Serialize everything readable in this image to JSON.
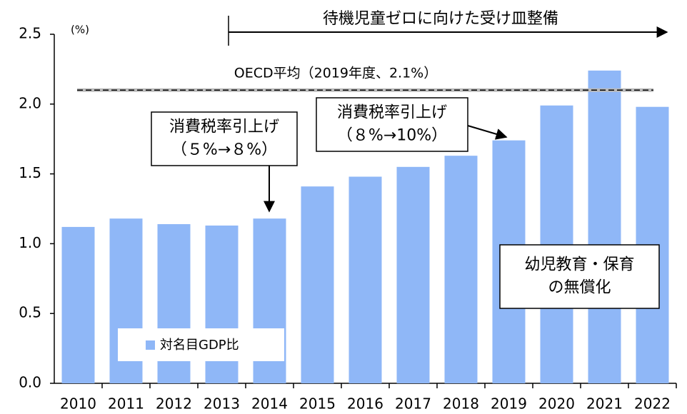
{
  "chart_data": {
    "type": "bar",
    "y_unit": "(%)",
    "categories": [
      "2010",
      "2011",
      "2012",
      "2013",
      "2014",
      "2015",
      "2016",
      "2017",
      "2018",
      "2019",
      "2020",
      "2021",
      "2022"
    ],
    "series": [
      {
        "name": "対名目GDP比",
        "color": "#8fb7f7",
        "values": [
          1.12,
          1.18,
          1.14,
          1.13,
          1.18,
          1.41,
          1.48,
          1.55,
          1.63,
          1.74,
          1.99,
          2.24,
          1.98
        ]
      }
    ],
    "ylim": [
      0,
      2.5
    ],
    "yticks": [
      {
        "value": 0,
        "label": "0.0"
      },
      {
        "value": 0.5,
        "label": "0.5"
      },
      {
        "value": 1,
        "label": "1.0"
      },
      {
        "value": 1.5,
        "label": "1.5"
      },
      {
        "value": 2,
        "label": "2.0"
      },
      {
        "value": 2.5,
        "label": "2.5"
      }
    ],
    "reference_line": {
      "value": 2.1,
      "label": "OECD平均（2019年度、2.1%）"
    },
    "annotations": [
      {
        "lines": [
          "待機児童ゼロに向けた受け皿整備"
        ]
      },
      {
        "lines": [
          "消費税率引上げ",
          "（５%→８%）"
        ]
      },
      {
        "lines": [
          "消費税率引上げ",
          "（８%→10%）"
        ]
      },
      {
        "lines": [
          "幼児教育・保育",
          "の無償化"
        ]
      }
    ],
    "legend": "bottom-left"
  }
}
